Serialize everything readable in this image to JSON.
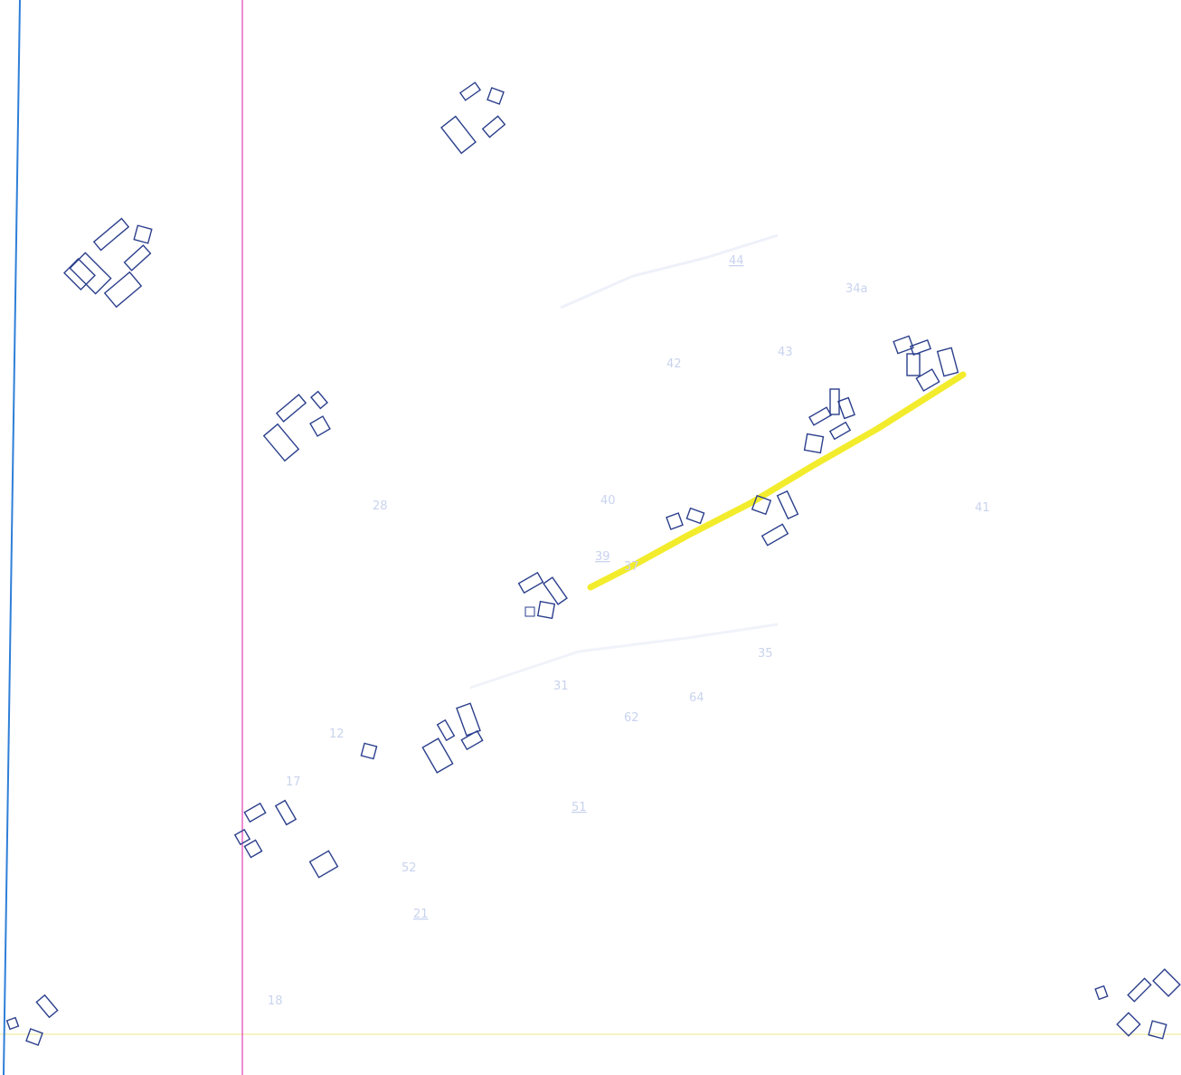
{
  "map": {
    "colors": {
      "paper": "#ffffff",
      "boundary_blue": "#2f7fd8",
      "boundary_magenta": "#e040b8",
      "highlight_yellow": "#f2ec2c",
      "faint_line_yellow": "#f4efb0",
      "building_outline": "#2b3f8c",
      "faint_numbers": "#c9d3ee"
    },
    "layers": {
      "boundary_left": "blue-vertical-boundary",
      "boundary_inner": "magenta-vertical-boundary",
      "highlight": "yellow-highlighted-street",
      "bottom_line": "faint-yellow-horizontal-line"
    },
    "house_numbers": {
      "n44": "44",
      "n34a": "34а",
      "n43": "43",
      "n42": "42",
      "n28": "28",
      "n40": "40",
      "n39": "39",
      "n37": "37",
      "n35": "35",
      "n64": "64",
      "n62": "62",
      "n31": "31",
      "n51": "51",
      "n52": "52",
      "n21": "21",
      "n17": "17",
      "n18": "18",
      "n41": "41",
      "n12": "12"
    }
  }
}
